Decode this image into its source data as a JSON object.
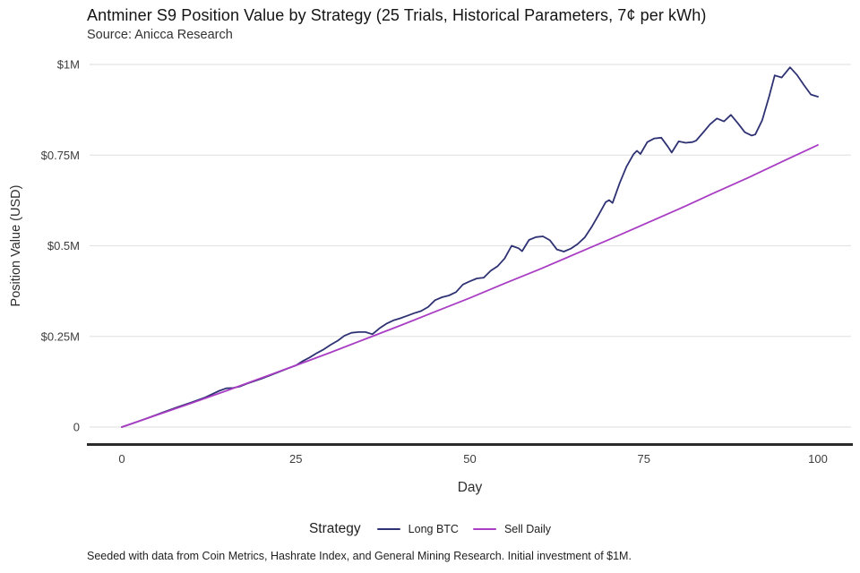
{
  "header": {
    "title": "Antminer S9 Position Value by Strategy (25 Trials, Historical Parameters, 7¢ per kWh)",
    "subtitle": "Source: Anicca Research"
  },
  "chart_data": {
    "type": "line",
    "title": "Antminer S9 Position Value by Strategy (25 Trials, Historical Parameters, 7¢ per kWh)",
    "xlabel": "Day",
    "ylabel": "Position Value (USD)",
    "xlim": [
      0,
      100
    ],
    "ylim": [
      0,
      1
    ],
    "units": "millions USD",
    "grid": true,
    "legend_position": "bottom",
    "x_ticks": [
      0,
      25,
      50,
      75,
      100
    ],
    "y_ticks": [
      {
        "value": 0,
        "label": "0"
      },
      {
        "value": 0.25,
        "label": "$0.25M"
      },
      {
        "value": 0.5,
        "label": "$0.5M"
      },
      {
        "value": 0.75,
        "label": "$0.75M"
      },
      {
        "value": 1,
        "label": "$1M"
      }
    ],
    "series": [
      {
        "name": "Long BTC",
        "color": "#2e3273",
        "x": [
          0,
          2,
          4,
          6,
          8,
          10,
          12,
          14,
          15,
          16,
          17,
          18,
          20,
          22,
          24,
          25,
          26,
          27,
          28,
          29,
          30,
          31,
          32,
          33,
          34,
          35,
          36,
          37,
          38,
          39,
          40,
          41,
          42,
          43,
          44,
          45,
          46,
          47,
          48,
          49,
          50,
          51,
          52,
          53,
          54,
          55,
          56,
          57,
          57.5,
          58.5,
          59.5,
          60.5,
          61.5,
          62.5,
          63.5,
          64.5,
          65.5,
          66.5,
          67.5,
          68.5,
          69.5,
          70,
          70.5,
          71.5,
          72.5,
          73.5,
          74,
          74.5,
          75.5,
          76.5,
          77.5,
          78.5,
          79,
          80,
          81,
          82,
          82.5,
          83.5,
          84.5,
          85.5,
          86.5,
          87.5,
          88.5,
          89.5,
          90.5,
          91,
          92,
          93,
          93.8,
          94.8,
          96,
          97,
          98,
          99,
          100
        ],
        "values": [
          0,
          0.013,
          0.027,
          0.041,
          0.055,
          0.068,
          0.082,
          0.1,
          0.107,
          0.108,
          0.112,
          0.12,
          0.133,
          0.148,
          0.163,
          0.17,
          0.182,
          0.192,
          0.204,
          0.214,
          0.227,
          0.238,
          0.252,
          0.26,
          0.262,
          0.262,
          0.256,
          0.272,
          0.285,
          0.294,
          0.3,
          0.307,
          0.314,
          0.32,
          0.331,
          0.35,
          0.358,
          0.363,
          0.372,
          0.393,
          0.402,
          0.41,
          0.412,
          0.431,
          0.444,
          0.465,
          0.5,
          0.493,
          0.485,
          0.516,
          0.524,
          0.526,
          0.515,
          0.49,
          0.484,
          0.492,
          0.505,
          0.523,
          0.552,
          0.585,
          0.62,
          0.626,
          0.618,
          0.672,
          0.718,
          0.752,
          0.762,
          0.753,
          0.786,
          0.796,
          0.798,
          0.772,
          0.757,
          0.788,
          0.784,
          0.786,
          0.79,
          0.812,
          0.835,
          0.851,
          0.843,
          0.861,
          0.838,
          0.813,
          0.804,
          0.807,
          0.846,
          0.912,
          0.97,
          0.964,
          0.992,
          0.971,
          0.943,
          0.917,
          0.911
        ]
      },
      {
        "name": "Sell Daily",
        "color": "#a93dc4",
        "x": [
          0,
          5,
          10,
          15,
          20,
          25,
          30,
          35,
          40,
          45,
          50,
          55,
          60,
          65,
          70,
          75,
          80,
          85,
          90,
          95,
          100
        ],
        "values": [
          0,
          0.033,
          0.066,
          0.1,
          0.135,
          0.17,
          0.206,
          0.243,
          0.28,
          0.318,
          0.356,
          0.396,
          0.435,
          0.476,
          0.517,
          0.559,
          0.601,
          0.645,
          0.688,
          0.733,
          0.778
        ]
      }
    ]
  },
  "legend": {
    "title": "Strategy"
  },
  "footer": {
    "note": "Seeded with data from Coin Metrics, Hashrate Index, and General Mining Research. Initial investment of $1M."
  },
  "colors": {
    "long_btc": "#2e3273",
    "sell_daily": "#a93dc4",
    "grid": "#e4e4e4",
    "axis": "#2b2b2b",
    "tick_text": "#3d3d3d",
    "label_text": "#2e2e2e",
    "title_text": "#141414",
    "background": "#ffffff"
  }
}
